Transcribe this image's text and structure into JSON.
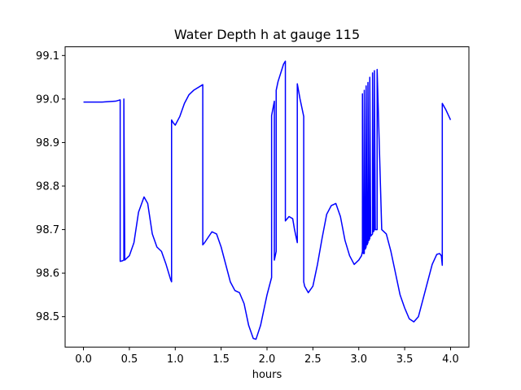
{
  "chart_data": {
    "type": "line",
    "title": "Water Depth h at gauge 115",
    "xlabel": "hours",
    "ylabel": "",
    "xlim": [
      -0.2,
      4.2
    ],
    "ylim": [
      98.43,
      99.12
    ],
    "xticks": [
      "0.0",
      "0.5",
      "1.0",
      "1.5",
      "2.0",
      "2.5",
      "3.0",
      "3.5",
      "4.0"
    ],
    "yticks": [
      "98.5",
      "98.6",
      "98.7",
      "98.8",
      "98.9",
      "99.0",
      "99.1"
    ],
    "grid": false,
    "legend": "none",
    "series": [
      {
        "color": "#0000ff",
        "x": [
          0.0,
          0.2,
          0.35,
          0.4,
          0.4,
          0.42,
          0.44,
          0.44,
          0.45,
          0.5,
          0.55,
          0.6,
          0.66,
          0.7,
          0.75,
          0.8,
          0.85,
          0.9,
          0.95,
          0.96,
          0.96,
          0.98,
          1.0,
          1.05,
          1.1,
          1.15,
          1.2,
          1.3,
          1.3,
          1.32,
          1.4,
          1.45,
          1.5,
          1.6,
          1.65,
          1.7,
          1.75,
          1.8,
          1.85,
          1.88,
          1.93,
          2.0,
          2.05,
          2.05,
          2.08,
          2.08,
          2.1,
          2.1,
          2.12,
          2.15,
          2.18,
          2.2,
          2.2,
          2.24,
          2.28,
          2.3,
          2.32,
          2.33,
          2.33,
          2.36,
          2.4,
          2.4,
          2.41,
          2.45,
          2.5,
          2.55,
          2.6,
          2.65,
          2.7,
          2.75,
          2.8,
          2.85,
          2.9,
          2.95,
          3.0,
          3.03,
          3.04,
          3.04,
          3.05,
          3.06,
          3.06,
          3.07,
          3.08,
          3.08,
          3.09,
          3.1,
          3.1,
          3.11,
          3.12,
          3.12,
          3.13,
          3.15,
          3.15,
          3.16,
          3.17,
          3.17,
          3.18,
          3.2,
          3.2,
          3.25,
          3.3,
          3.35,
          3.4,
          3.45,
          3.5,
          3.55,
          3.6,
          3.65,
          3.7,
          3.75,
          3.8,
          3.85,
          3.88,
          3.9,
          3.91,
          3.91,
          3.95,
          4.0
        ],
        "y": [
          98.993,
          98.993,
          98.995,
          98.998,
          98.627,
          98.628,
          98.63,
          99.0,
          98.63,
          98.64,
          98.67,
          98.74,
          98.775,
          98.76,
          98.69,
          98.66,
          98.65,
          98.62,
          98.585,
          98.58,
          98.952,
          98.945,
          98.94,
          98.96,
          98.99,
          99.01,
          99.02,
          99.033,
          98.665,
          98.67,
          98.695,
          98.69,
          98.66,
          98.58,
          98.56,
          98.555,
          98.53,
          98.48,
          98.45,
          98.448,
          98.48,
          98.55,
          98.59,
          98.962,
          98.995,
          98.63,
          98.65,
          99.02,
          99.04,
          99.06,
          99.08,
          99.087,
          98.72,
          98.73,
          98.725,
          98.7,
          98.68,
          98.67,
          99.035,
          99.0,
          98.96,
          98.58,
          98.57,
          98.555,
          98.57,
          98.62,
          98.68,
          98.735,
          98.755,
          98.76,
          98.73,
          98.675,
          98.64,
          98.62,
          98.63,
          98.64,
          98.65,
          99.012,
          98.645,
          98.645,
          99.02,
          98.655,
          98.66,
          99.03,
          98.665,
          98.67,
          99.038,
          98.675,
          98.68,
          99.05,
          98.685,
          98.69,
          99.06,
          98.695,
          98.7,
          99.065,
          98.7,
          98.7,
          99.068,
          98.7,
          98.69,
          98.65,
          98.6,
          98.55,
          98.52,
          98.495,
          98.488,
          98.5,
          98.54,
          98.58,
          98.62,
          98.643,
          98.645,
          98.64,
          98.618,
          98.99,
          98.975,
          98.952
        ]
      }
    ]
  }
}
